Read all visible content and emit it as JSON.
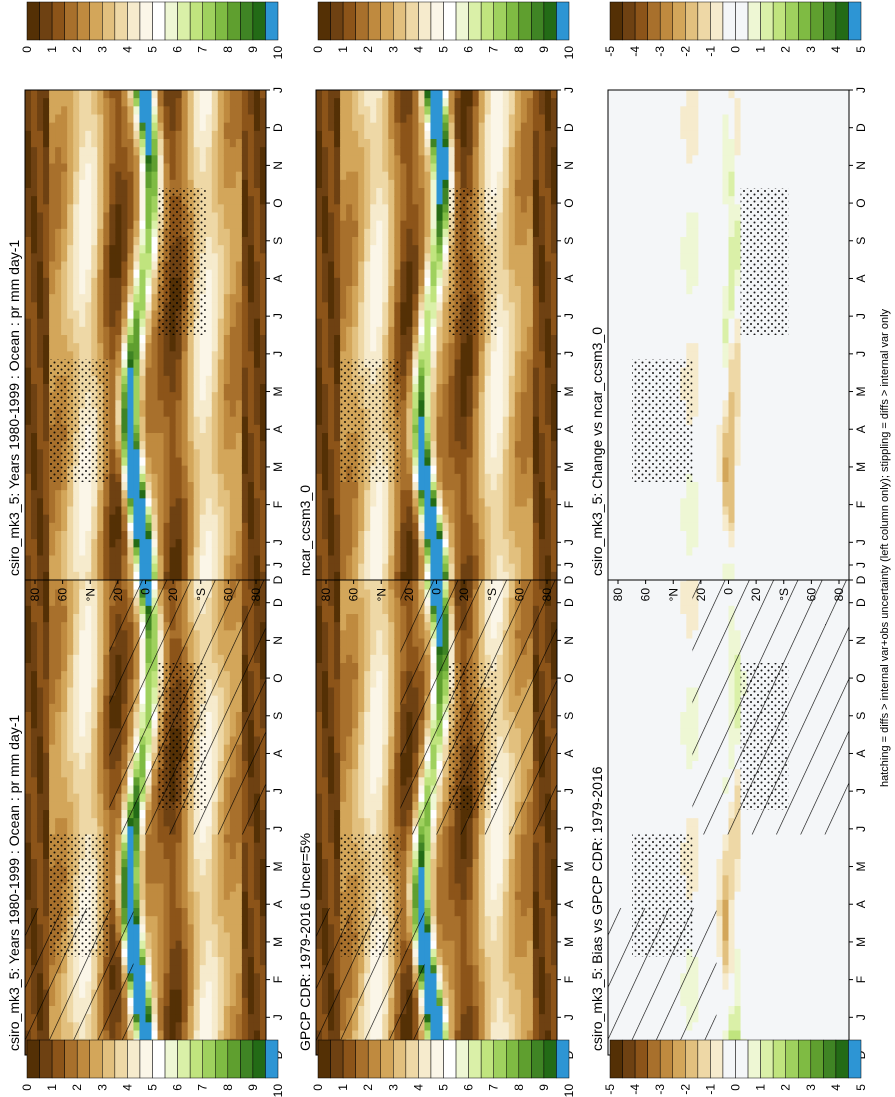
{
  "footnote": "hatching = diffs > internal var+obs uncertainty (left column only); stippling = diffs > internal var only",
  "colors": {
    "precip_scale": [
      "#543005",
      "#6e4112",
      "#8c5419",
      "#a8702c",
      "#bf8a3f",
      "#d3a65a",
      "#e2c07e",
      "#eed8a6",
      "#f6ebcd",
      "#fbf6e8",
      "#ffffff",
      "#eef7d4",
      "#daf0a8",
      "#c0e47e",
      "#9fd15e",
      "#7fbb43",
      "#5f9f2f",
      "#3f8424",
      "#236b16",
      "#2d95d4"
    ],
    "diff_scale": [
      "#543005",
      "#6e4112",
      "#8c5419",
      "#a8702c",
      "#bf8a3f",
      "#d3a65a",
      "#e2c07e",
      "#eed8a6",
      "#f6ebcd",
      "#f4f6f8",
      "#f4f6f8",
      "#eef7d4",
      "#daf0a8",
      "#c0e47e",
      "#9fd15e",
      "#7fbb43",
      "#5f9f2f",
      "#3f8424",
      "#236b16",
      "#2d95d4"
    ]
  },
  "chart_data": [
    {
      "type": "heatmap",
      "title": "csiro_mk3_5: Years 1980-1999 : Ocean : pr mm day-1",
      "x": [
        "D",
        "J",
        "F",
        "M",
        "A",
        "M",
        "J",
        "J",
        "A",
        "S",
        "O",
        "N",
        "D",
        "J"
      ],
      "y_ticks": [
        "80",
        "60",
        "°N",
        "20",
        "0",
        "20",
        "°S",
        "60",
        "80"
      ],
      "ylim": [
        -90,
        90
      ],
      "colorbar": [
        "10",
        "9",
        "8",
        "7",
        "6",
        "5",
        "4",
        "3",
        "2",
        "1",
        "0"
      ],
      "zlim": [
        0,
        10
      ],
      "overlay": "hatching and stippling"
    },
    {
      "type": "heatmap",
      "title": "csiro_mk3_5: Years 1980-1999 : Ocean : pr mm day-1",
      "x": [
        "D",
        "J",
        "F",
        "M",
        "A",
        "M",
        "J",
        "J",
        "A",
        "S",
        "O",
        "N",
        "D",
        "J"
      ],
      "y_ticks": [
        "80",
        "60",
        "°N",
        "20",
        "0",
        "20",
        "°S",
        "60",
        "80"
      ],
      "ylim": [
        -90,
        90
      ],
      "colorbar": [
        "10",
        "9",
        "8",
        "7",
        "6",
        "5",
        "4",
        "3",
        "2",
        "1",
        "0"
      ],
      "zlim": [
        0,
        10
      ],
      "overlay": "stippling"
    },
    {
      "type": "heatmap",
      "title": "GPCP CDR: 1979-2016 Uncer=5%",
      "x": [
        "D",
        "J",
        "F",
        "M",
        "A",
        "M",
        "J",
        "J",
        "A",
        "S",
        "O",
        "N",
        "D",
        "J"
      ],
      "y_ticks": [
        "80",
        "60",
        "°N",
        "20",
        "0",
        "20",
        "°S",
        "60",
        "80"
      ],
      "ylim": [
        -90,
        90
      ],
      "colorbar": [
        "10",
        "9",
        "8",
        "7",
        "6",
        "5",
        "4",
        "3",
        "2",
        "1",
        "0"
      ],
      "zlim": [
        0,
        10
      ],
      "overlay": "hatching and stippling"
    },
    {
      "type": "heatmap",
      "title": "ncar_ccsm3_0",
      "x": [
        "D",
        "J",
        "F",
        "M",
        "A",
        "M",
        "J",
        "J",
        "A",
        "S",
        "O",
        "N",
        "D",
        "J"
      ],
      "y_ticks": [
        "80",
        "60",
        "°N",
        "20",
        "0",
        "20",
        "°S",
        "60",
        "80"
      ],
      "ylim": [
        -90,
        90
      ],
      "colorbar": [
        "10",
        "9",
        "8",
        "7",
        "6",
        "5",
        "4",
        "3",
        "2",
        "1",
        "0"
      ],
      "zlim": [
        0,
        10
      ],
      "overlay": "stippling"
    },
    {
      "type": "heatmap",
      "title": "csiro_mk3_5: Bias vs GPCP CDR: 1979-2016",
      "x": [
        "D",
        "J",
        "F",
        "M",
        "A",
        "M",
        "J",
        "J",
        "A",
        "S",
        "O",
        "N",
        "D",
        "J"
      ],
      "y_ticks": [
        "80",
        "60",
        "°N",
        "20",
        "0",
        "20",
        "°S",
        "60",
        "80"
      ],
      "ylim": [
        -90,
        90
      ],
      "colorbar": [
        "5",
        "4",
        "3",
        "2",
        "1",
        "0",
        "-1",
        "-2",
        "-3",
        "-4",
        "-5"
      ],
      "zlim": [
        -5,
        5
      ],
      "overlay": "hatching and stippling"
    },
    {
      "type": "heatmap",
      "title": "csiro_mk3_5: Change vs ncar_ccsm3_0",
      "x": [
        "D",
        "J",
        "F",
        "M",
        "A",
        "M",
        "J",
        "J",
        "A",
        "S",
        "O",
        "N",
        "D",
        "J"
      ],
      "y_ticks": [
        "80",
        "60",
        "°N",
        "20",
        "0",
        "20",
        "°S",
        "60",
        "80"
      ],
      "ylim": [
        -90,
        90
      ],
      "colorbar": [
        "5",
        "4",
        "3",
        "2",
        "1",
        "0",
        "-1",
        "-2",
        "-3",
        "-4",
        "-5"
      ],
      "zlim": [
        -5,
        5
      ],
      "overlay": "stippling"
    }
  ]
}
